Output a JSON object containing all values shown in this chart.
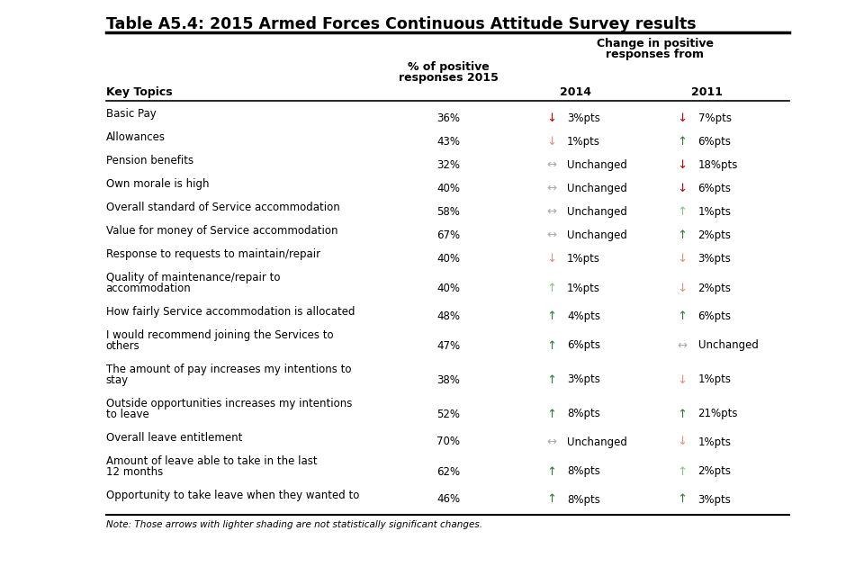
{
  "title": "Table A5.4: 2015 Armed Forces Continuous Attitude Survey results",
  "note": "Note: Those arrows with lighter shading are not statistically significant changes.",
  "col_headers": {
    "key_topics": "Key Topics",
    "pct_2015_line1": "% of positive",
    "pct_2015_line2": "responses 2015",
    "change_header_line1": "Change in positive",
    "change_header_line2": "responses from",
    "year_2014": "2014",
    "year_2011": "2011"
  },
  "rows": [
    {
      "topic": [
        "Basic Pay"
      ],
      "pct": "36%",
      "arrow_2014": "down_dark",
      "val_2014": "3%pts",
      "arrow_2011": "down_dark",
      "val_2011": "7%pts"
    },
    {
      "topic": [
        "Allowances"
      ],
      "pct": "43%",
      "arrow_2014": "down_light",
      "val_2014": "1%pts",
      "arrow_2011": "up_dark",
      "val_2011": "6%pts"
    },
    {
      "topic": [
        "Pension benefits"
      ],
      "pct": "32%",
      "arrow_2014": "side_light",
      "val_2014": "Unchanged",
      "arrow_2011": "down_dark",
      "val_2011": "18%pts"
    },
    {
      "topic": [
        "Own morale is high"
      ],
      "pct": "40%",
      "arrow_2014": "side_light",
      "val_2014": "Unchanged",
      "arrow_2011": "down_dark",
      "val_2011": "6%pts"
    },
    {
      "topic": [
        "Overall standard of Service accommodation"
      ],
      "pct": "58%",
      "arrow_2014": "side_light",
      "val_2014": "Unchanged",
      "arrow_2011": "up_light",
      "val_2011": "1%pts"
    },
    {
      "topic": [
        "Value for money of Service accommodation"
      ],
      "pct": "67%",
      "arrow_2014": "side_light",
      "val_2014": "Unchanged",
      "arrow_2011": "up_dark",
      "val_2011": "2%pts"
    },
    {
      "topic": [
        "Response to requests to maintain/repair"
      ],
      "pct": "40%",
      "arrow_2014": "down_light",
      "val_2014": "1%pts",
      "arrow_2011": "down_light",
      "val_2011": "3%pts"
    },
    {
      "topic": [
        "Quality of maintenance/repair to",
        "accommodation"
      ],
      "pct": "40%",
      "arrow_2014": "up_light",
      "val_2014": "1%pts",
      "arrow_2011": "down_light",
      "val_2011": "2%pts"
    },
    {
      "topic": [
        "How fairly Service accommodation is allocated"
      ],
      "pct": "48%",
      "arrow_2014": "up_dark",
      "val_2014": "4%pts",
      "arrow_2011": "up_dark",
      "val_2011": "6%pts"
    },
    {
      "topic": [
        "I would recommend joining the Services to",
        "others"
      ],
      "pct": "47%",
      "arrow_2014": "up_dark",
      "val_2014": "6%pts",
      "arrow_2011": "side_light",
      "val_2011": "Unchanged"
    },
    {
      "topic": [
        "The amount of pay increases my intentions to",
        "stay"
      ],
      "pct": "38%",
      "arrow_2014": "up_dark",
      "val_2014": "3%pts",
      "arrow_2011": "down_light",
      "val_2011": "1%pts"
    },
    {
      "topic": [
        "Outside opportunities increases my intentions",
        "to leave"
      ],
      "pct": "52%",
      "arrow_2014": "up_dark",
      "val_2014": "8%pts",
      "arrow_2011": "up_dark",
      "val_2011": "21%pts"
    },
    {
      "topic": [
        "Overall leave entitlement"
      ],
      "pct": "70%",
      "arrow_2014": "side_light",
      "val_2014": "Unchanged",
      "arrow_2011": "down_light",
      "val_2011": "1%pts"
    },
    {
      "topic": [
        "Amount of leave able to take in the last",
        "12 months"
      ],
      "pct": "62%",
      "arrow_2014": "up_dark",
      "val_2014": "8%pts",
      "arrow_2011": "up_light",
      "val_2011": "2%pts"
    },
    {
      "topic": [
        "Opportunity to take leave when they wanted to"
      ],
      "pct": "46%",
      "arrow_2014": "up_dark",
      "val_2014": "8%pts",
      "arrow_2011": "up_dark",
      "val_2011": "3%pts"
    }
  ],
  "colors": {
    "down_dark": "#cc0000",
    "down_light": "#e8917a",
    "up_dark": "#2e7d32",
    "up_light": "#81c784",
    "side_dark": "#888888",
    "side_light": "#aaaaaa",
    "text_color": "#000000"
  }
}
